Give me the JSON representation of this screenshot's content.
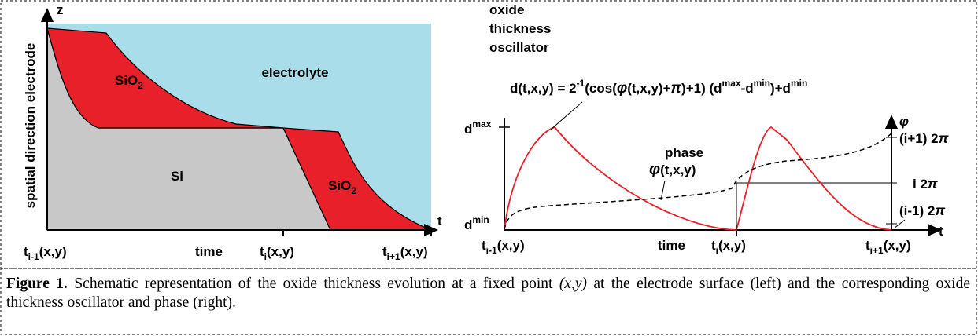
{
  "left_panel": {
    "axis_z": "z",
    "axis_t": "t",
    "y_label": "spatial direction electrode",
    "electrolyte": "electrolyte",
    "si": "Si",
    "sio2_upper": {
      "base": "SiO",
      "sub": "2"
    },
    "sio2_lower": {
      "base": "SiO",
      "sub": "2"
    },
    "x_labels": [
      {
        "base": "t",
        "sub": "i-1",
        "rest": "(x,y)"
      },
      {
        "base": "time"
      },
      {
        "base": "t",
        "sub": "i",
        "rest": "(x,y)"
      },
      {
        "base": "t",
        "sub": "i+1",
        "rest": "(x,y)"
      }
    ]
  },
  "right_panel": {
    "title_lines": [
      "oxide",
      "thickness",
      "oscillator"
    ],
    "formula": [
      {
        "text": "d(t,x,y) = 2"
      },
      {
        "sup": "-1"
      },
      {
        "text": "(cos("
      },
      {
        "sym": "φ"
      },
      {
        "text": "(t,x,y)+"
      },
      {
        "sym": "π"
      },
      {
        "text": ")+1) (d"
      },
      {
        "sup": "max"
      },
      {
        "text": "-d"
      },
      {
        "sup": "min"
      },
      {
        "text": ")+d"
      },
      {
        "sup": "min"
      }
    ],
    "d_max": {
      "base": "d",
      "sup": "max"
    },
    "d_min": {
      "base": "d",
      "sup": "min"
    },
    "phase_word": "phase",
    "phase_func": {
      "sym": "φ",
      "rest": "(t,x,y)"
    },
    "axis_t": "t",
    "axis_phi": "φ",
    "phase_ticks": [
      {
        "base": "(i+1) 2",
        "sym": "π"
      },
      {
        "base": "i 2",
        "sym": "π"
      },
      {
        "base": "(i-1) 2",
        "sym": "π"
      }
    ],
    "x_labels": [
      {
        "base": "t",
        "sub": "i-1",
        "rest": "(x,y)"
      },
      {
        "base": "time"
      },
      {
        "base": "t",
        "sub": "i",
        "rest": "(x,y)"
      },
      {
        "base": "t",
        "sub": "i+1",
        "rest": "(x,y)"
      }
    ]
  },
  "caption": {
    "label": "Figure 1.",
    "text_before": "Schematic representation of the oxide thickness evolution at a fixed point ",
    "italic": "(x,y)",
    "text_after": " at the electrode surface (left) and the corresponding oxide thickness oscillator and phase (right)."
  }
}
